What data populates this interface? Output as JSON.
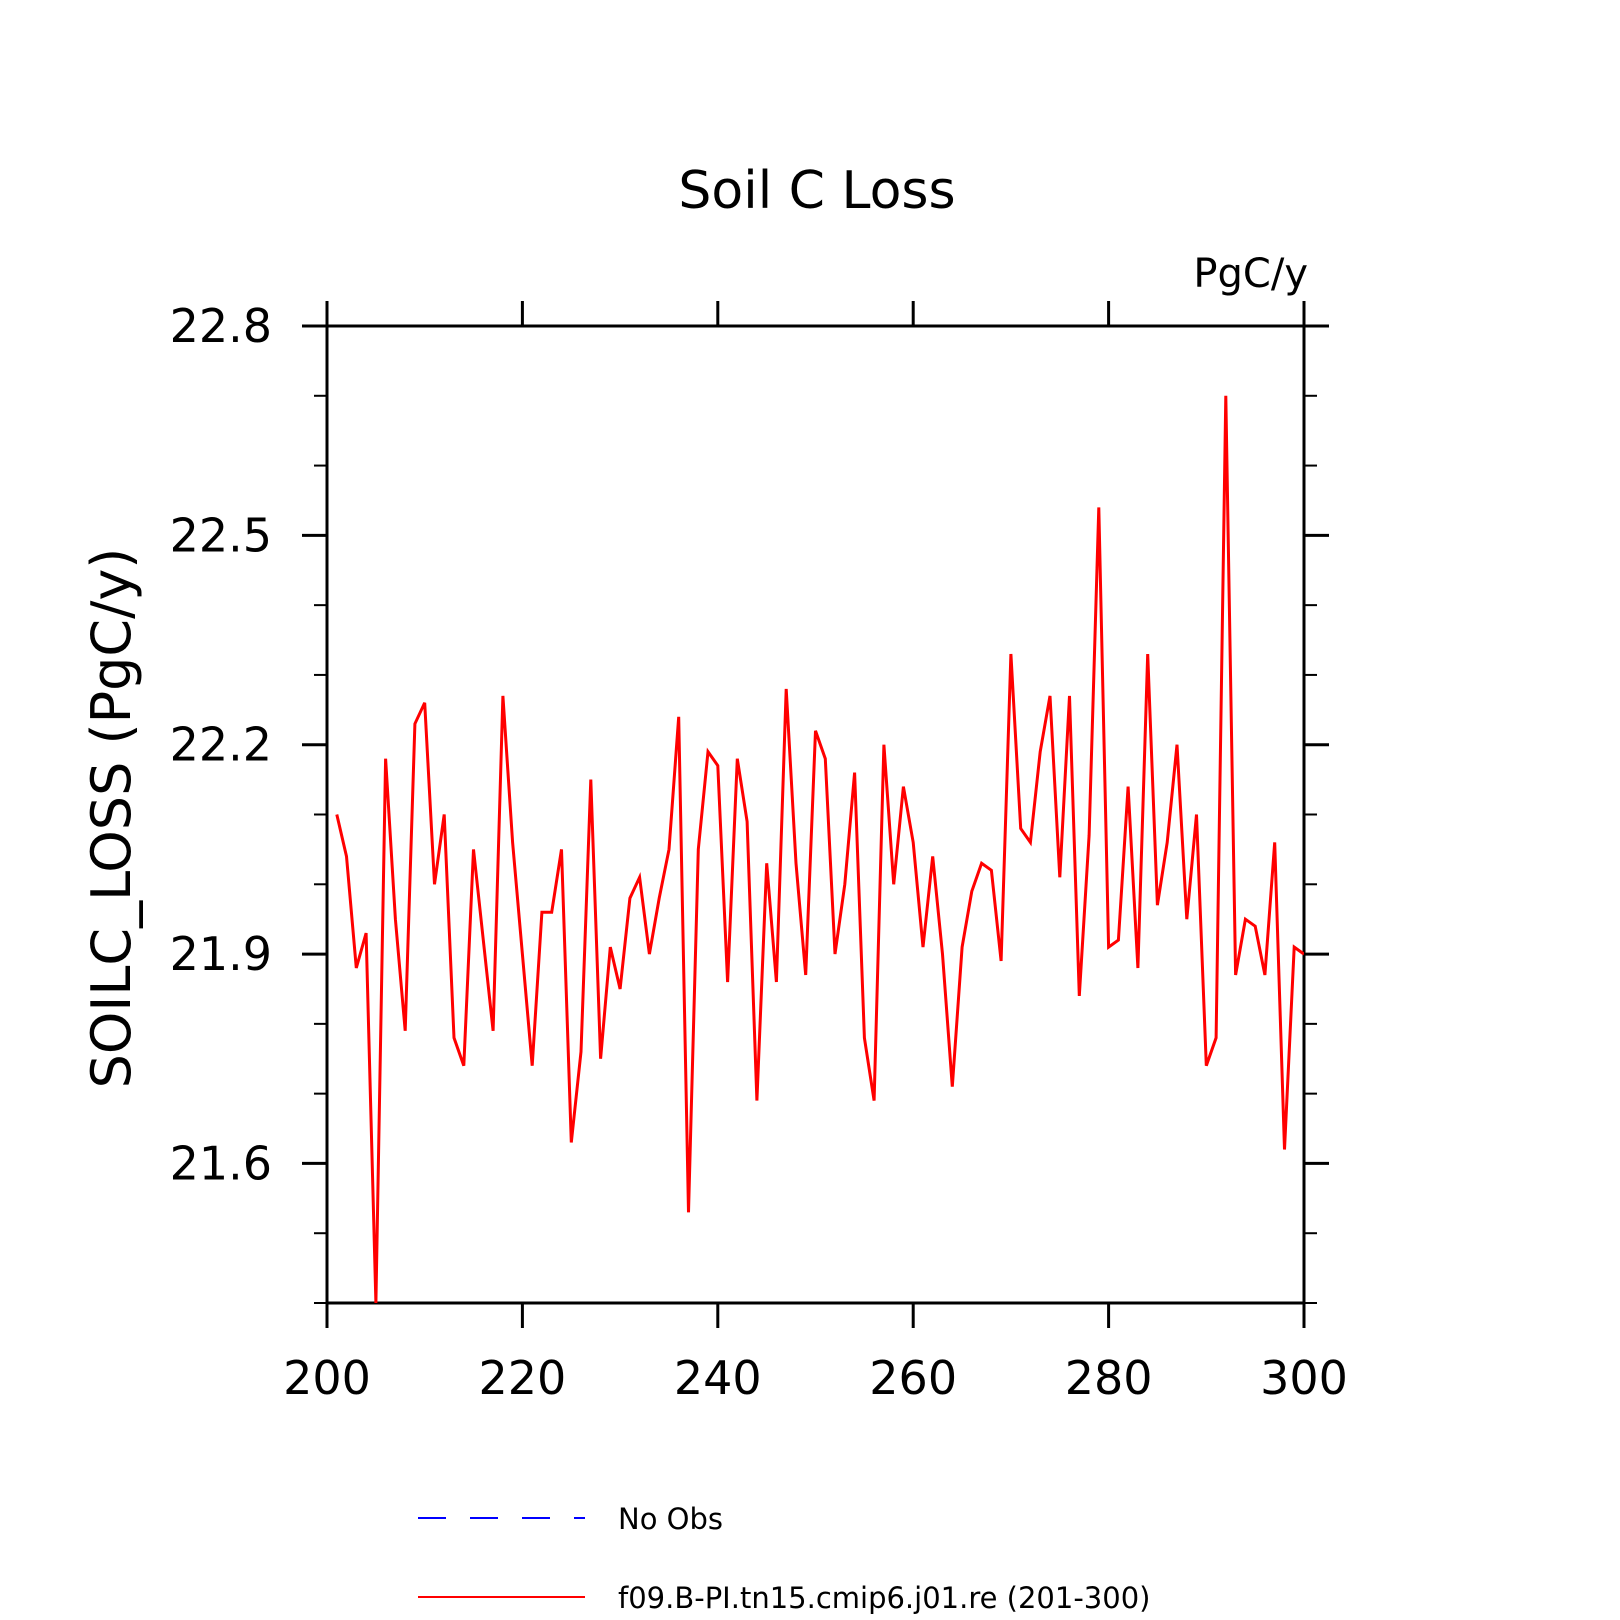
{
  "chart_data": {
    "type": "line",
    "title": "Soil C Loss",
    "units_label": "PgC/y",
    "ylabel": "SOILC_LOSS  (PgC/y)",
    "xlabel": "",
    "xlim": [
      200,
      300
    ],
    "ylim": [
      21.4,
      22.8
    ],
    "xticks": [
      200,
      220,
      240,
      260,
      280,
      300
    ],
    "xtick_labels": [
      "200",
      "220",
      "240",
      "260",
      "280",
      "300"
    ],
    "yticks": [
      21.6,
      21.9,
      22.2,
      22.5,
      22.8
    ],
    "ytick_labels": [
      "21.6",
      "21.9",
      "22.2",
      "22.5",
      "22.8"
    ],
    "y_minor_step": 0.1,
    "grid": false,
    "legend_position": "bottom",
    "series": [
      {
        "name": "No Obs",
        "color": "#0000ff",
        "style": "dashed",
        "x": [],
        "y": []
      },
      {
        "name": "f09.B-PI.tn15.cmip6.j01.re (201-300)",
        "color": "#ff0000",
        "style": "solid",
        "x": [
          201,
          202,
          203,
          204,
          205,
          206,
          207,
          208,
          209,
          210,
          211,
          212,
          213,
          214,
          215,
          216,
          217,
          218,
          219,
          220,
          221,
          222,
          223,
          224,
          225,
          226,
          227,
          228,
          229,
          230,
          231,
          232,
          233,
          234,
          235,
          236,
          237,
          238,
          239,
          240,
          241,
          242,
          243,
          244,
          245,
          246,
          247,
          248,
          249,
          250,
          251,
          252,
          253,
          254,
          255,
          256,
          257,
          258,
          259,
          260,
          261,
          262,
          263,
          264,
          265,
          266,
          267,
          268,
          269,
          270,
          271,
          272,
          273,
          274,
          275,
          276,
          277,
          278,
          279,
          280,
          281,
          282,
          283,
          284,
          285,
          286,
          287,
          288,
          289,
          290,
          291,
          292,
          293,
          294,
          295,
          296,
          297,
          298,
          299,
          300
        ],
        "y": [
          22.1,
          22.04,
          21.88,
          21.93,
          21.4,
          22.18,
          21.95,
          21.79,
          22.23,
          22.26,
          22.0,
          22.1,
          21.78,
          21.74,
          22.05,
          21.92,
          21.79,
          22.27,
          22.06,
          21.9,
          21.74,
          21.96,
          21.96,
          22.05,
          21.63,
          21.76,
          22.15,
          21.75,
          21.91,
          21.85,
          21.98,
          22.01,
          21.9,
          21.98,
          22.05,
          22.24,
          21.53,
          22.05,
          22.19,
          22.17,
          21.86,
          22.18,
          22.09,
          21.69,
          22.03,
          21.86,
          22.28,
          22.03,
          21.87,
          22.22,
          22.18,
          21.9,
          22.0,
          22.16,
          21.78,
          21.69,
          22.2,
          22.0,
          22.14,
          22.06,
          21.91,
          22.04,
          21.9,
          21.71,
          21.91,
          21.99,
          22.03,
          22.02,
          21.89,
          22.33,
          22.08,
          22.06,
          22.19,
          22.27,
          22.01,
          22.27,
          21.84,
          22.07,
          22.54,
          21.91,
          21.92,
          22.14,
          21.88,
          22.33,
          21.97,
          22.06,
          22.2,
          21.95,
          22.1,
          21.74,
          21.78,
          22.7,
          21.87,
          21.95,
          21.94,
          21.87,
          22.06,
          21.62,
          21.91,
          21.9
        ]
      }
    ]
  }
}
